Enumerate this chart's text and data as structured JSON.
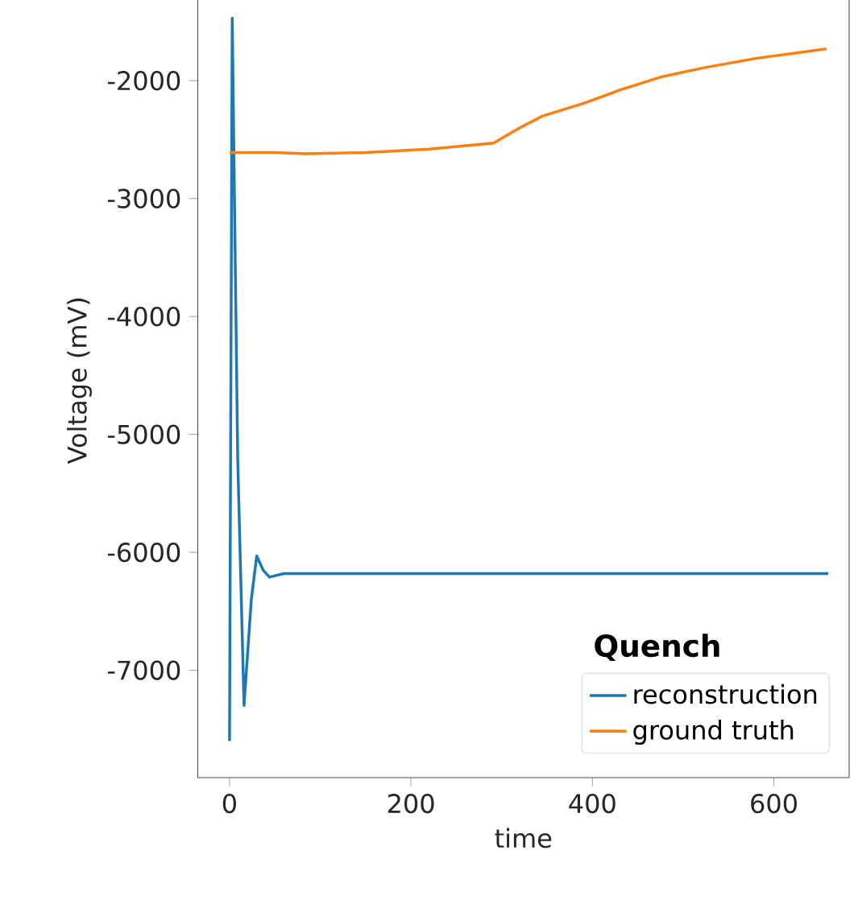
{
  "chart_data": {
    "type": "line",
    "xlabel": "time",
    "ylabel": "Voltage (mV)",
    "legend_title": "Quench",
    "xlim": [
      -35,
      683
    ],
    "ylim": [
      -7910,
      -1170
    ],
    "xticks": [
      0,
      200,
      400,
      600
    ],
    "yticks": [
      -7000,
      -6000,
      -5000,
      -4000,
      -3000,
      -2000
    ],
    "legend": "bottom right",
    "grid": false,
    "series": [
      {
        "name": "reconstruction",
        "color": "#1f77b4",
        "x": [
          0,
          3,
          9,
          16,
          24,
          30,
          37,
          44,
          60,
          100,
          300,
          660
        ],
        "values": [
          -7600,
          -1470,
          -5200,
          -7300,
          -6400,
          -6030,
          -6150,
          -6210,
          -6180,
          -6180,
          -6180,
          -6180
        ]
      },
      {
        "name": "ground truth",
        "color": "#ff7f0e",
        "x": [
          0,
          50,
          84,
          150,
          220,
          291,
          320,
          345,
          391,
          430,
          475,
          523,
          581,
          620,
          658
        ],
        "values": [
          -2610,
          -2610,
          -2620,
          -2610,
          -2580,
          -2530,
          -2400,
          -2300,
          -2190,
          -2080,
          -1970,
          -1890,
          -1810,
          -1770,
          -1730
        ]
      }
    ]
  }
}
